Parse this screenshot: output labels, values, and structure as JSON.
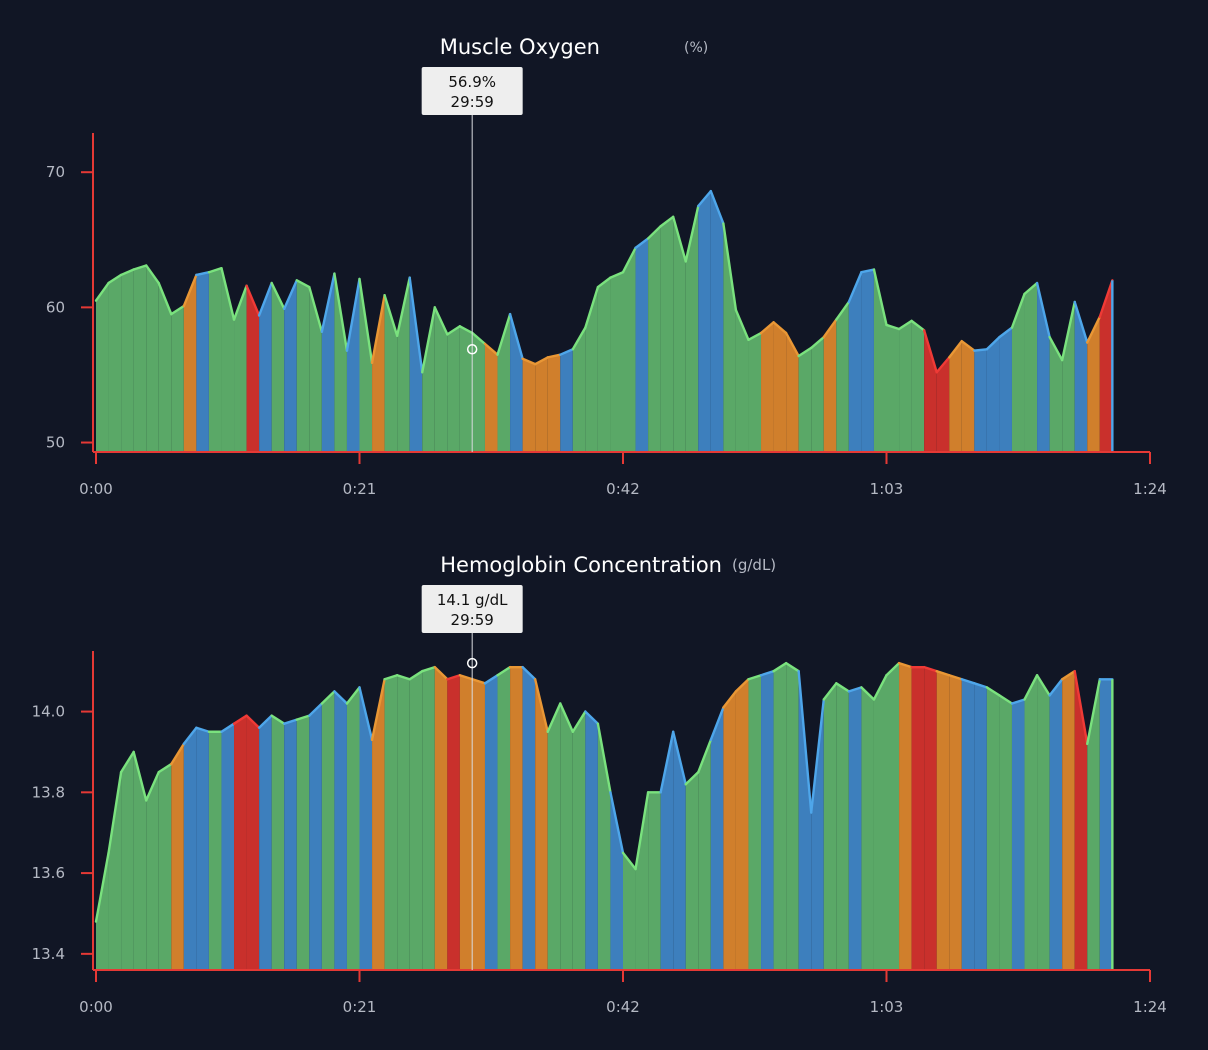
{
  "theme": {
    "background": "#111625",
    "axis": "#e53935",
    "text": "#b5b9c4",
    "title": "#ffffff",
    "zones": {
      "1": "#5aa867",
      "2": "#3d7fbd",
      "3": "#d07f2c",
      "4": "#c9302c"
    },
    "lines": {
      "1": "#7ae27e",
      "2": "#4ea6ea",
      "3": "#e99735",
      "4": "#ef3a36"
    }
  },
  "chart_data": [
    {
      "type": "area",
      "title": "Muscle Oxygen",
      "unit": "(%)",
      "x_ticks": [
        "0:00",
        "0:21",
        "0:42",
        "1:03",
        "1:24"
      ],
      "xlim_minutes": [
        0,
        84
      ],
      "ylim": [
        49.3,
        72.9
      ],
      "y_ticks": [
        50,
        60,
        70
      ],
      "y_tick_labels": [
        "50",
        "60",
        "70"
      ],
      "x_min": [
        0,
        1,
        2,
        3,
        4,
        5,
        6,
        7,
        8,
        9,
        10,
        11,
        12,
        13,
        14,
        15,
        16,
        17,
        18,
        19,
        20,
        21,
        22,
        23,
        24,
        25,
        26,
        27,
        28,
        29,
        30,
        31,
        32,
        33,
        34,
        35,
        36,
        37,
        38,
        39,
        40,
        41,
        42,
        43,
        44,
        45,
        46,
        47,
        48,
        49,
        50,
        51,
        52,
        53,
        54,
        55,
        56,
        57,
        58,
        59,
        60,
        61,
        62,
        63,
        64,
        65,
        66,
        67,
        68,
        69,
        70,
        71,
        72,
        73,
        74,
        75,
        76,
        77,
        78,
        79,
        80,
        81
      ],
      "values": [
        60.5,
        61.8,
        62.4,
        62.8,
        63.1,
        61.8,
        59.5,
        60.1,
        62.4,
        62.6,
        62.9,
        59.1,
        61.6,
        59.4,
        61.8,
        59.9,
        62.0,
        61.5,
        58.2,
        62.5,
        56.8,
        62.1,
        55.9,
        60.9,
        57.9,
        62.2,
        55.2,
        60.0,
        58.0,
        58.6,
        58.1,
        57.3,
        56.5,
        59.5,
        56.2,
        55.8,
        56.3,
        56.5,
        56.9,
        58.5,
        61.5,
        62.2,
        62.6,
        64.4,
        65.1,
        66.0,
        66.7,
        63.4,
        67.5,
        68.6,
        66.2,
        59.8,
        57.6,
        58.1,
        58.9,
        58.1,
        56.4,
        57.0,
        57.8,
        59.1,
        60.4,
        62.6,
        62.8,
        58.7,
        58.4,
        59.0,
        58.3,
        55.2,
        56.3,
        57.5,
        56.8,
        56.9,
        57.8,
        58.5,
        61.0,
        61.8,
        57.8,
        56.1,
        60.4,
        57.4,
        59.3,
        62.0
      ],
      "zones": [
        1,
        1,
        1,
        1,
        1,
        1,
        1,
        3,
        2,
        1,
        1,
        1,
        4,
        2,
        1,
        2,
        1,
        1,
        2,
        1,
        2,
        1,
        3,
        1,
        1,
        2,
        1,
        1,
        1,
        1,
        1,
        3,
        1,
        2,
        3,
        3,
        3,
        2,
        1,
        1,
        1,
        1,
        1,
        2,
        1,
        1,
        1,
        1,
        2,
        2,
        1,
        1,
        1,
        3,
        3,
        3,
        1,
        1,
        3,
        1,
        2,
        2,
        1,
        1,
        1,
        1,
        4,
        4,
        3,
        3,
        2,
        2,
        2,
        1,
        1,
        2,
        1,
        1,
        2,
        3,
        4,
        2
      ],
      "cursor": {
        "x_min": 29.98,
        "value": 56.9,
        "value_label": "56.9%",
        "time_label": "29:59"
      }
    },
    {
      "type": "area",
      "title": "Hemoglobin Concentration",
      "unit": "(g/dL)",
      "x_ticks": [
        "0:00",
        "0:21",
        "0:42",
        "1:03",
        "1:24"
      ],
      "xlim_minutes": [
        0,
        84
      ],
      "ylim": [
        13.36,
        14.15
      ],
      "y_ticks": [
        13.4,
        13.6,
        13.8,
        14.0
      ],
      "y_tick_labels": [
        "13.4",
        "13.6",
        "13.8",
        "14.0"
      ],
      "x_min": [
        0,
        1,
        2,
        3,
        4,
        5,
        6,
        7,
        8,
        9,
        10,
        11,
        12,
        13,
        14,
        15,
        16,
        17,
        18,
        19,
        20,
        21,
        22,
        23,
        24,
        25,
        26,
        27,
        28,
        29,
        30,
        31,
        32,
        33,
        34,
        35,
        36,
        37,
        38,
        39,
        40,
        41,
        42,
        43,
        44,
        45,
        46,
        47,
        48,
        49,
        50,
        51,
        52,
        53,
        54,
        55,
        56,
        57,
        58,
        59,
        60,
        61,
        62,
        63,
        64,
        65,
        66,
        67,
        68,
        69,
        70,
        71,
        72,
        73,
        74,
        75,
        76,
        77,
        78,
        79,
        80,
        81
      ],
      "values": [
        13.48,
        13.65,
        13.85,
        13.9,
        13.78,
        13.85,
        13.87,
        13.92,
        13.96,
        13.95,
        13.95,
        13.97,
        13.99,
        13.96,
        13.99,
        13.97,
        13.98,
        13.99,
        14.02,
        14.05,
        14.02,
        14.06,
        13.93,
        14.08,
        14.09,
        14.08,
        14.1,
        14.11,
        14.08,
        14.09,
        14.08,
        14.07,
        14.09,
        14.11,
        14.11,
        14.08,
        13.95,
        14.02,
        13.95,
        14.0,
        13.97,
        13.8,
        13.65,
        13.61,
        13.8,
        13.8,
        13.95,
        13.82,
        13.85,
        13.93,
        14.01,
        14.05,
        14.08,
        14.09,
        14.1,
        14.12,
        14.1,
        13.75,
        14.03,
        14.07,
        14.05,
        14.06,
        14.03,
        14.09,
        14.12,
        14.11,
        14.11,
        14.1,
        14.09,
        14.08,
        14.07,
        14.06,
        14.04,
        14.02,
        14.03,
        14.09,
        14.04,
        14.08,
        14.1,
        13.92,
        14.08,
        14.08
      ],
      "zones": [
        1,
        1,
        1,
        1,
        1,
        1,
        3,
        2,
        2,
        1,
        2,
        4,
        4,
        2,
        1,
        2,
        1,
        2,
        1,
        2,
        1,
        2,
        3,
        1,
        1,
        1,
        1,
        3,
        4,
        3,
        3,
        2,
        1,
        3,
        2,
        3,
        1,
        1,
        1,
        2,
        1,
        2,
        1,
        1,
        1,
        2,
        2,
        1,
        1,
        2,
        3,
        3,
        1,
        2,
        1,
        1,
        2,
        2,
        1,
        1,
        2,
        1,
        1,
        1,
        3,
        4,
        4,
        3,
        3,
        2,
        2,
        1,
        1,
        2,
        1,
        1,
        2,
        3,
        4,
        1,
        2,
        1
      ],
      "cursor": {
        "x_min": 29.98,
        "value": 14.12,
        "value_label": "14.1 g/dL",
        "time_label": "29:59"
      }
    }
  ]
}
